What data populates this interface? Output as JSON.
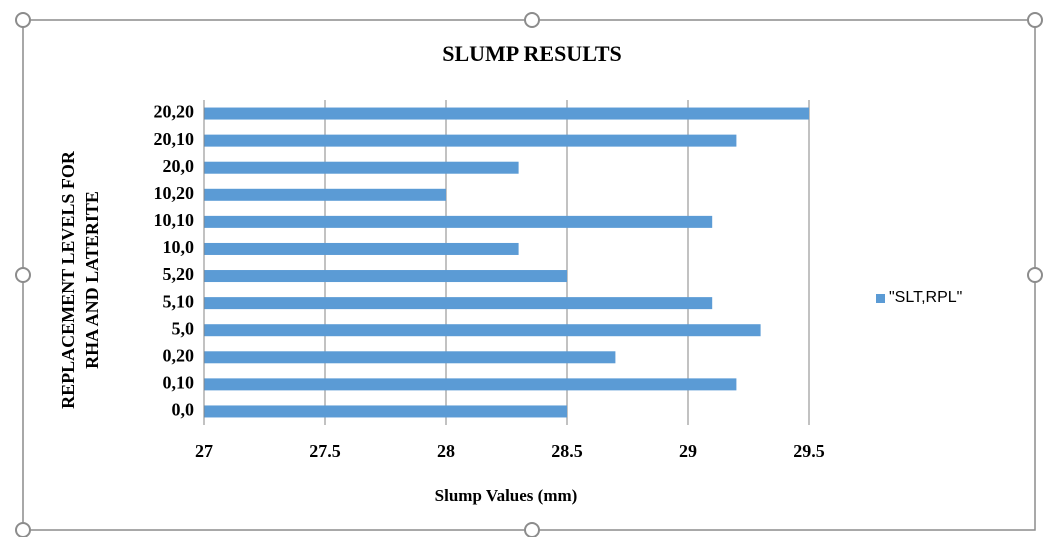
{
  "chart_data": {
    "type": "bar",
    "orientation": "horizontal",
    "title": "SLUMP RESULTS",
    "x_label": "Slump Values (mm)",
    "y_label": [
      "REPLACEMENT LEVELS FOR",
      "RHA AND LATERITE"
    ],
    "categories": [
      "0,0",
      "0,10",
      "0,20",
      "5,0",
      "5,10",
      "5,20",
      "10,0",
      "10,10",
      "10,20",
      "20,0",
      "20,10",
      "20,20"
    ],
    "series": [
      {
        "name": "\"SLT,RPL\"",
        "color": "#5b9bd5",
        "values": [
          28.5,
          29.2,
          28.7,
          29.3,
          29.1,
          28.5,
          28.3,
          29.1,
          28.0,
          28.3,
          29.2,
          29.5
        ]
      }
    ],
    "xlim": [
      27,
      29.5
    ],
    "xticks": [
      27,
      27.5,
      28,
      28.5,
      29,
      29.5
    ],
    "grid": true,
    "legend": "right"
  }
}
